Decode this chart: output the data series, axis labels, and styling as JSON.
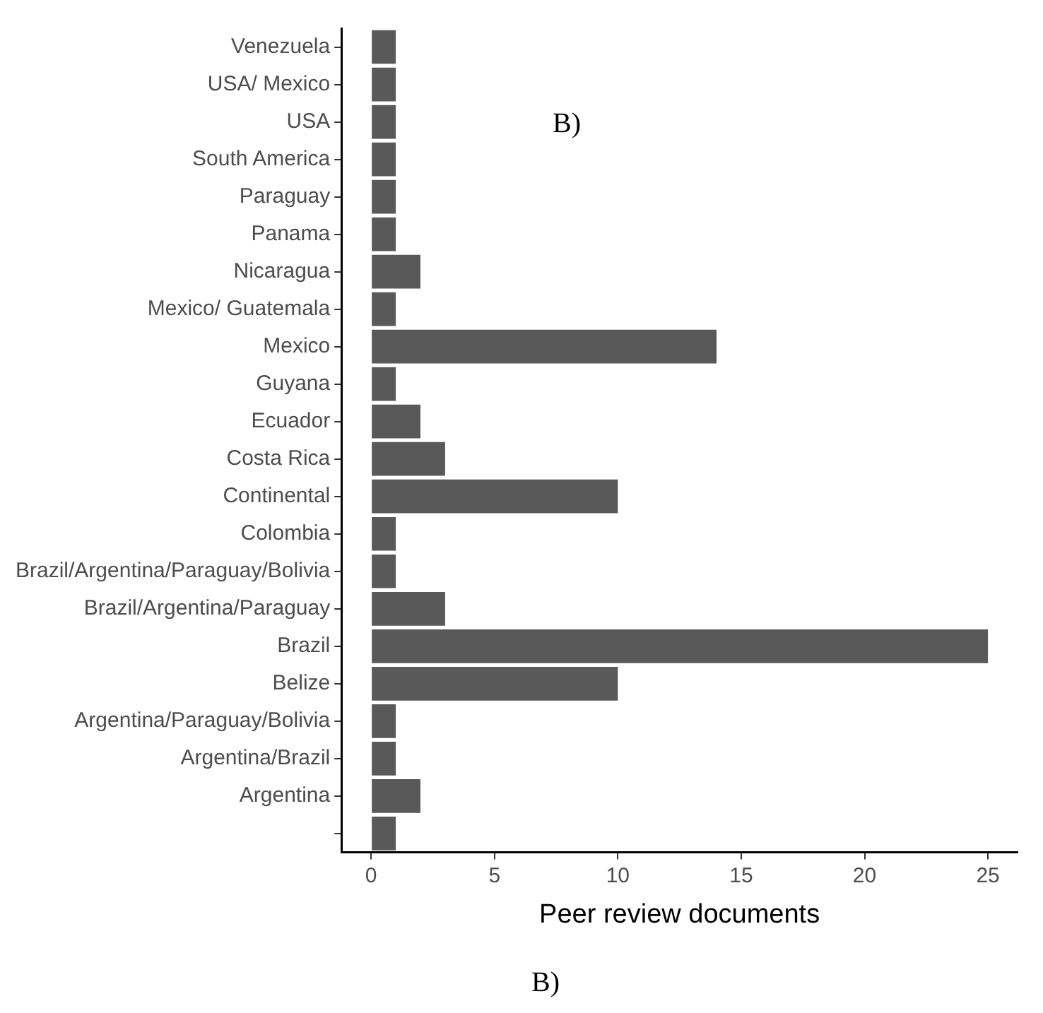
{
  "chart_data": {
    "type": "bar",
    "orientation": "horizontal",
    "xlabel": "Peer review documents",
    "categories": [
      "Venezuela",
      "USA/ Mexico",
      "USA",
      "South America",
      "Paraguay",
      "Panama",
      "Nicaragua",
      "Mexico/ Guatemala",
      "Mexico",
      "Guyana",
      "Ecuador",
      "Costa Rica",
      "Continental",
      "Colombia",
      "Brazil/Argentina/Paraguay/Bolivia",
      "Brazil/Argentina/Paraguay",
      "Brazil",
      "Belize",
      "Argentina/Paraguay/Bolivia",
      "Argentina/Brazil",
      "Argentina",
      null
    ],
    "values": [
      1,
      1,
      1,
      1,
      1,
      1,
      2,
      1,
      14,
      1,
      2,
      3,
      10,
      1,
      1,
      3,
      25,
      10,
      1,
      1,
      2,
      1
    ],
    "color": "#595959",
    "xlim": [
      -1.2,
      26.2
    ],
    "xticks": [
      0,
      5,
      10,
      15,
      20,
      25
    ],
    "grid": false,
    "annotations": [
      "B)",
      "B)"
    ]
  }
}
